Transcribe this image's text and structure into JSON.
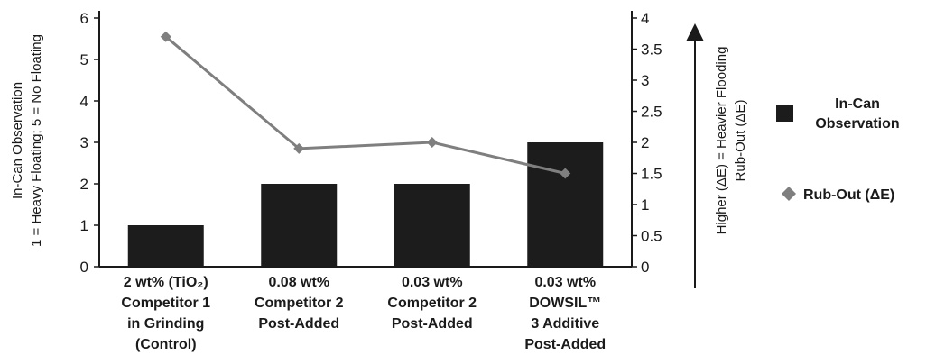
{
  "chart_data": {
    "type": "bar",
    "categories": [
      [
        "2 wt% (TiO₂)",
        "Competitor 1",
        "in Grinding",
        "(Control)"
      ],
      [
        "0.08 wt%",
        "Competitor 2",
        "Post-Added"
      ],
      [
        "0.03 wt%",
        "Competitor 2",
        "Post-Added"
      ],
      [
        "0.03 wt%",
        "DOWSIL™",
        "3 Additive",
        "Post-Added"
      ]
    ],
    "series": [
      {
        "name": "In-Can Observation",
        "type": "bar",
        "axis": "left",
        "values": [
          1,
          2,
          2,
          3
        ]
      },
      {
        "name": "Rub-Out (ΔE)",
        "type": "line",
        "axis": "right",
        "values": [
          3.7,
          1.9,
          2.0,
          1.5
        ]
      }
    ],
    "ylabel_left": [
      "In-Can Observation",
      "1 = Heavy Floating; 5 = No Floating"
    ],
    "ylabel_right": [
      "Higher (ΔE) = Heavier Flooding",
      "Rub-Out (ΔE)"
    ],
    "ylim_left": [
      0,
      6
    ],
    "yticks_left": [
      "0",
      "1",
      "2",
      "3",
      "4",
      "5",
      "6"
    ],
    "ylim_right": [
      0,
      4
    ],
    "yticks_right": [
      "0",
      "0.5",
      "1",
      "1.5",
      "2",
      "2.5",
      "3",
      "3.5",
      "4"
    ],
    "legend": {
      "position": "right",
      "items": [
        {
          "lines": [
            "In-Can",
            "Observation"
          ],
          "marker": "square"
        },
        {
          "lines": [
            "Rub-Out (ΔE)"
          ],
          "marker": "diamond"
        }
      ]
    },
    "colors": {
      "bar": "#1c1c1c",
      "line": "#7f7f7f",
      "axis": "#1a1a1a"
    }
  }
}
